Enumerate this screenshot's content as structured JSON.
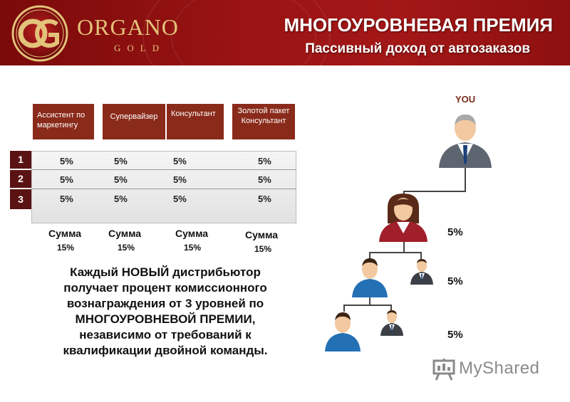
{
  "brand": {
    "name": "ORGANO",
    "sub": "GOLD"
  },
  "header": {
    "title": "МНОГОУРОВНЕВАЯ ПРЕМИЯ",
    "subtitle": "Пассивный доход от автозаказов"
  },
  "table": {
    "columns": [
      "Ассистент по маркетингу",
      "Супервайзер",
      "Консультант",
      "Золотой пакет Консультант"
    ],
    "levels": [
      "1",
      "2",
      "3"
    ],
    "rows": [
      [
        "5%",
        "5%",
        "5%",
        "5%"
      ],
      [
        "5%",
        "5%",
        "5%",
        "5%"
      ],
      [
        "5%",
        "5%",
        "5%",
        "5%"
      ]
    ],
    "totals_word": "Сумма",
    "totals": [
      "15%",
      "15%",
      "15%",
      "15%"
    ]
  },
  "description": {
    "part1": "Каждый ",
    "emphasis": "НОВЫЙ",
    "part2": " дистрибьютор получает процент комиссионного вознаграждения от 3 уровней по МНОГОУРОВНЕВОЙ ПРЕМИИ, независимо от требований к квалификации двойной команды."
  },
  "tree": {
    "root_label": "YOU",
    "level_percents": [
      "5%",
      "5%",
      "5%"
    ]
  },
  "watermark": {
    "text": "MyShared"
  },
  "colors": {
    "header_red": "#9c1414",
    "column_header": "#8a2a1a",
    "level_badge": "#5a1313",
    "gold": "#e3c37a"
  }
}
